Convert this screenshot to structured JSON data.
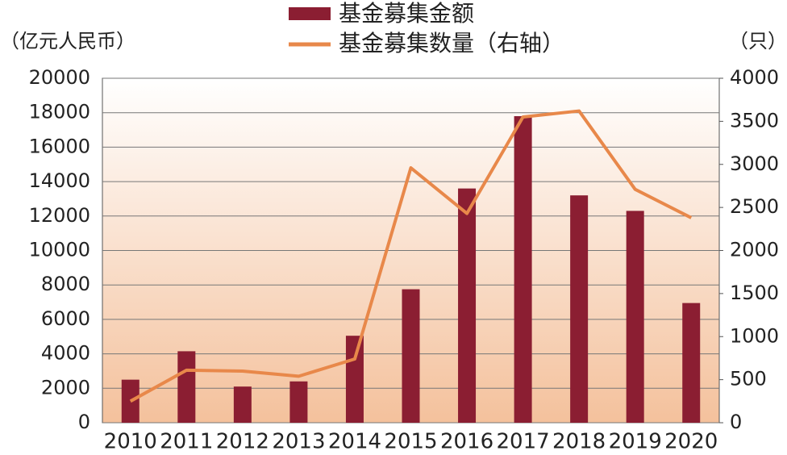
{
  "chart_data": {
    "type": "bar_line",
    "legend": [
      "基金募集金额",
      "基金募集数量（右轴）"
    ],
    "y_label": "（亿元人民币）",
    "y2_label": "（只）",
    "categories": [
      "2010",
      "2011",
      "2012",
      "2013",
      "2014",
      "2015",
      "2016",
      "2017",
      "2018",
      "2019",
      "2020"
    ],
    "series": [
      {
        "name": "基金募集金额",
        "type": "bar",
        "color": "#8b1e32",
        "values": [
          2500,
          4150,
          2100,
          2400,
          5050,
          7750,
          13600,
          17800,
          13200,
          12300,
          6950
        ]
      },
      {
        "name": "基金募集数量（右轴）",
        "type": "line",
        "axis": "y2",
        "color": "#e8884a",
        "values": [
          250,
          610,
          600,
          540,
          740,
          2960,
          2430,
          3550,
          3620,
          2710,
          2380
        ]
      }
    ],
    "ylim": [
      0,
      20000
    ],
    "yticks": [
      0,
      2000,
      4000,
      6000,
      8000,
      10000,
      12000,
      14000,
      16000,
      18000,
      20000
    ],
    "y2lim": [
      0,
      4000
    ],
    "y2ticks": [
      0,
      500,
      1000,
      1500,
      2000,
      2500,
      3000,
      3500,
      4000
    ],
    "grid": true
  }
}
